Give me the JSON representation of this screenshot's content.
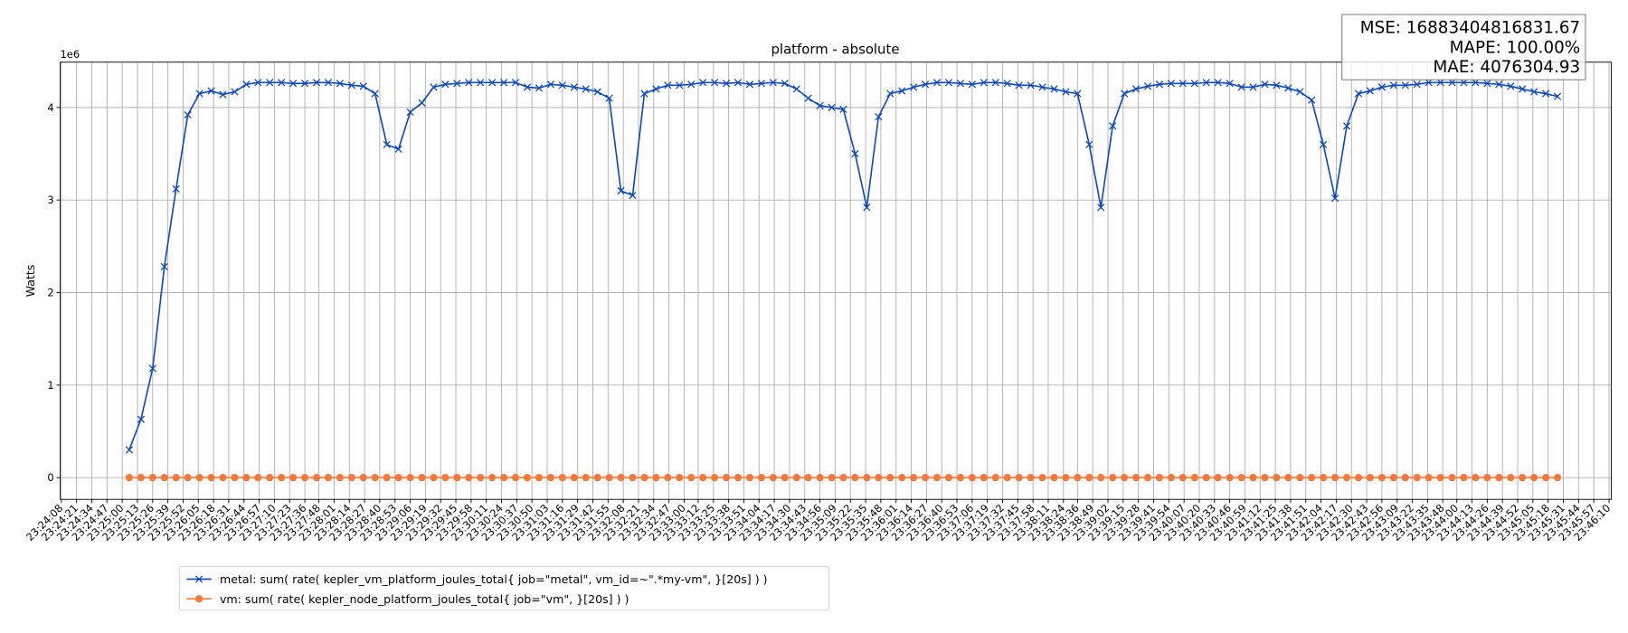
{
  "chart_data": {
    "type": "line",
    "title": "platform - absolute",
    "ylabel": "Watts",
    "y_offset_label": "1e6",
    "annotation": [
      "MSE: 16883404816831.67",
      "MAPE: 100.00%",
      "MAE: 4076304.93"
    ],
    "legend": "below",
    "grid": true,
    "xlim": [
      "23:24:07",
      "23:46:12"
    ],
    "ylim": [
      -0.235,
      4.49
    ],
    "yticks": [
      0,
      1,
      2,
      3,
      4
    ],
    "xticks": [
      "23:24:08",
      "23:24:21",
      "23:24:34",
      "23:24:47",
      "23:25:00",
      "23:25:13",
      "23:25:26",
      "23:25:39",
      "23:25:52",
      "23:26:05",
      "23:26:18",
      "23:26:31",
      "23:26:44",
      "23:26:57",
      "23:27:10",
      "23:27:23",
      "23:27:36",
      "23:27:48",
      "23:28:01",
      "23:28:14",
      "23:28:27",
      "23:28:40",
      "23:28:53",
      "23:29:06",
      "23:29:19",
      "23:29:32",
      "23:29:45",
      "23:29:58",
      "23:30:11",
      "23:30:24",
      "23:30:37",
      "23:30:50",
      "23:31:03",
      "23:31:16",
      "23:31:29",
      "23:31:42",
      "23:31:55",
      "23:32:08",
      "23:32:21",
      "23:32:34",
      "23:32:47",
      "23:33:00",
      "23:33:12",
      "23:33:25",
      "23:33:38",
      "23:33:51",
      "23:34:04",
      "23:34:17",
      "23:34:30",
      "23:34:43",
      "23:34:56",
      "23:35:09",
      "23:35:22",
      "23:35:35",
      "23:35:48",
      "23:36:01",
      "23:36:14",
      "23:36:27",
      "23:36:40",
      "23:36:53",
      "23:37:06",
      "23:37:19",
      "23:37:32",
      "23:37:45",
      "23:37:58",
      "23:38:11",
      "23:38:24",
      "23:38:36",
      "23:38:49",
      "23:39:02",
      "23:39:15",
      "23:39:28",
      "23:39:41",
      "23:39:54",
      "23:40:07",
      "23:40:20",
      "23:40:33",
      "23:40:46",
      "23:40:59",
      "23:41:12",
      "23:41:25",
      "23:41:38",
      "23:41:51",
      "23:42:04",
      "23:42:17",
      "23:42:30",
      "23:42:43",
      "23:42:56",
      "23:43:09",
      "23:43:22",
      "23:43:35",
      "23:43:48",
      "23:44:00",
      "23:44:13",
      "23:44:26",
      "23:44:39",
      "23:44:52",
      "23:45:05",
      "23:45:18",
      "23:45:31",
      "23:45:44",
      "23:45:57",
      "23:46:10"
    ],
    "x": [
      "23:25:06",
      "23:25:16",
      "23:25:26",
      "23:25:36",
      "23:25:46",
      "23:25:56",
      "23:26:06",
      "23:26:16",
      "23:26:26",
      "23:26:36",
      "23:26:46",
      "23:26:56",
      "23:27:06",
      "23:27:16",
      "23:27:26",
      "23:27:36",
      "23:27:46",
      "23:27:56",
      "23:28:06",
      "23:28:16",
      "23:28:26",
      "23:28:36",
      "23:28:46",
      "23:28:56",
      "23:29:06",
      "23:29:16",
      "23:29:26",
      "23:29:36",
      "23:29:46",
      "23:29:56",
      "23:30:06",
      "23:30:16",
      "23:30:26",
      "23:30:36",
      "23:30:46",
      "23:30:56",
      "23:31:06",
      "23:31:16",
      "23:31:26",
      "23:31:36",
      "23:31:46",
      "23:31:56",
      "23:32:06",
      "23:32:16",
      "23:32:26",
      "23:32:36",
      "23:32:46",
      "23:32:56",
      "23:33:06",
      "23:33:16",
      "23:33:26",
      "23:33:36",
      "23:33:46",
      "23:33:56",
      "23:34:06",
      "23:34:16",
      "23:34:26",
      "23:34:36",
      "23:34:46",
      "23:34:56",
      "23:35:06",
      "23:35:16",
      "23:35:26",
      "23:35:36",
      "23:35:46",
      "23:35:56",
      "23:36:06",
      "23:36:16",
      "23:36:26",
      "23:36:36",
      "23:36:46",
      "23:36:56",
      "23:37:06",
      "23:37:16",
      "23:37:26",
      "23:37:36",
      "23:37:46",
      "23:37:56",
      "23:38:06",
      "23:38:16",
      "23:38:26",
      "23:38:36",
      "23:38:46",
      "23:38:56",
      "23:39:06",
      "23:39:16",
      "23:39:26",
      "23:39:36",
      "23:39:46",
      "23:39:56",
      "23:40:06",
      "23:40:16",
      "23:40:26",
      "23:40:36",
      "23:40:46",
      "23:40:56",
      "23:41:06",
      "23:41:16",
      "23:41:26",
      "23:41:36",
      "23:41:46",
      "23:41:56",
      "23:42:06",
      "23:42:16",
      "23:42:26",
      "23:42:36",
      "23:42:46",
      "23:42:56",
      "23:43:06",
      "23:43:16",
      "23:43:26",
      "23:43:36",
      "23:43:46",
      "23:43:56",
      "23:44:06",
      "23:44:16",
      "23:44:26",
      "23:44:36",
      "23:44:46",
      "23:44:56",
      "23:45:06",
      "23:45:16",
      "23:45:26"
    ],
    "series": [
      {
        "name": "metal: sum( rate( kepler_vm_platform_joules_total{ job=\"metal\", vm_id=~\".*my-vm\", }[20s] ) )",
        "color": "#0a47c2",
        "marker": "x",
        "values": [
          0.3,
          0.63,
          1.18,
          2.28,
          3.12,
          3.92,
          4.15,
          4.18,
          4.14,
          4.17,
          4.25,
          4.27,
          4.27,
          4.27,
          4.26,
          4.26,
          4.27,
          4.27,
          4.26,
          4.24,
          4.23,
          4.15,
          3.6,
          3.55,
          3.95,
          4.05,
          4.22,
          4.25,
          4.26,
          4.27,
          4.27,
          4.27,
          4.27,
          4.27,
          4.22,
          4.21,
          4.25,
          4.24,
          4.22,
          4.2,
          4.17,
          4.1,
          3.1,
          3.05,
          4.15,
          4.2,
          4.24,
          4.24,
          4.25,
          4.27,
          4.27,
          4.26,
          4.27,
          4.25,
          4.26,
          4.27,
          4.26,
          4.2,
          4.1,
          4.02,
          4.0,
          3.98,
          3.5,
          2.92,
          3.9,
          4.15,
          4.18,
          4.22,
          4.25,
          4.27,
          4.27,
          4.26,
          4.25,
          4.27,
          4.27,
          4.26,
          4.24,
          4.24,
          4.22,
          4.2,
          4.17,
          4.15,
          3.6,
          2.92,
          3.8,
          4.15,
          4.2,
          4.23,
          4.25,
          4.26,
          4.26,
          4.26,
          4.27,
          4.27,
          4.26,
          4.22,
          4.22,
          4.25,
          4.24,
          4.21,
          4.17,
          4.08,
          3.6,
          3.02,
          3.8,
          4.15,
          4.18,
          4.22,
          4.24,
          4.24,
          4.25,
          4.27,
          4.27,
          4.27,
          4.27,
          4.27,
          4.26,
          4.25,
          4.23,
          4.2,
          4.17,
          4.15,
          4.12
        ]
      },
      {
        "name": "vm: sum( rate( kepler_node_platform_joules_total{ job=\"vm\", }[20s] ) )",
        "color": "#f5793a",
        "marker": "o",
        "values": [
          0,
          0,
          0,
          0,
          0,
          0,
          0,
          0,
          0,
          0,
          0,
          0,
          0,
          0,
          0,
          0,
          0,
          0,
          0,
          0,
          0,
          0,
          0,
          0,
          0,
          0,
          0,
          0,
          0,
          0,
          0,
          0,
          0,
          0,
          0,
          0,
          0,
          0,
          0,
          0,
          0,
          0,
          0,
          0,
          0,
          0,
          0,
          0,
          0,
          0,
          0,
          0,
          0,
          0,
          0,
          0,
          0,
          0,
          0,
          0,
          0,
          0,
          0,
          0,
          0,
          0,
          0,
          0,
          0,
          0,
          0,
          0,
          0,
          0,
          0,
          0,
          0,
          0,
          0,
          0,
          0,
          0,
          0,
          0,
          0,
          0,
          0,
          0,
          0,
          0,
          0,
          0,
          0,
          0,
          0,
          0,
          0,
          0,
          0,
          0,
          0,
          0,
          0,
          0,
          0,
          0,
          0,
          0,
          0,
          0,
          0,
          0,
          0,
          0,
          0,
          0,
          0,
          0,
          0,
          0,
          0,
          0,
          0
        ]
      }
    ]
  }
}
